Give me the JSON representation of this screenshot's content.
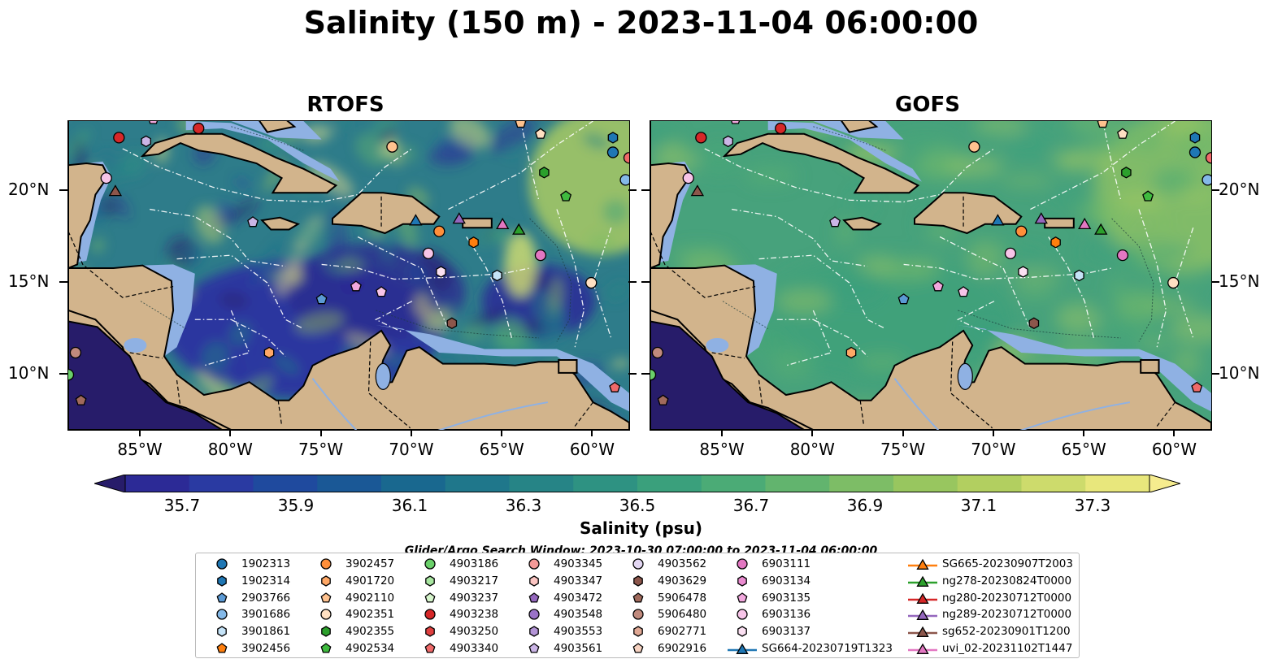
{
  "title": "Salinity (150 m) - 2023-11-04 06:00:00",
  "panels": [
    {
      "title": "RTOFS",
      "id": "rtofs"
    },
    {
      "title": "GOFS",
      "id": "gofs"
    }
  ],
  "axes": {
    "lon_labels": [
      "85°W",
      "80°W",
      "75°W",
      "70°W",
      "65°W",
      "60°W"
    ],
    "lon_values": [
      -85,
      -80,
      -75,
      -70,
      -65,
      -60
    ],
    "lat_labels": [
      "20°N",
      "15°N",
      "10°N"
    ],
    "lat_values": [
      20,
      15,
      10
    ],
    "lon_range": [
      -89,
      -58
    ],
    "lat_range": [
      7,
      23.8
    ]
  },
  "colorbar": {
    "label": "Salinity (psu)",
    "tick_labels": [
      "35.7",
      "35.9",
      "36.1",
      "36.3",
      "36.5",
      "36.7",
      "36.9",
      "37.1",
      "37.3"
    ],
    "range": [
      35.6,
      37.4
    ],
    "colors": [
      "#271c6a",
      "#2c2a96",
      "#2a3aa2",
      "#1f4a9e",
      "#1a5896",
      "#19688f",
      "#1f778b",
      "#268486",
      "#2e9282",
      "#3aa07c",
      "#4bab76",
      "#62b46e",
      "#7dbd66",
      "#98c65f",
      "#b2cf60",
      "#cddb6c",
      "#e8e77c",
      "#f6ec8e"
    ]
  },
  "search_window": "Glider/Argo Search Window: 2023-10-30 07:00:00 to 2023-11-04 06:00:00",
  "colors": {
    "land": "#d2b48c",
    "shelf": "#8fb1e3",
    "outline": "#000000"
  },
  "legend": [
    {
      "label": "1902313",
      "marker": "circle",
      "color": "#1f77b4"
    },
    {
      "label": "1902314",
      "marker": "hexagon",
      "color": "#1f77b4"
    },
    {
      "label": "2903766",
      "marker": "pentagon",
      "color": "#5b9ad5"
    },
    {
      "label": "3901686",
      "marker": "circle",
      "color": "#84b9e8"
    },
    {
      "label": "3901861",
      "marker": "hexagon",
      "color": "#c5e3f7"
    },
    {
      "label": "3902456",
      "marker": "pentagon",
      "color": "#ff7f0e"
    },
    {
      "label": "3902457",
      "marker": "circle",
      "color": "#ff8f3a"
    },
    {
      "label": "4901720",
      "marker": "hexagon",
      "color": "#ffa866"
    },
    {
      "label": "4902110",
      "marker": "pentagon",
      "color": "#ffc28f"
    },
    {
      "label": "4902351",
      "marker": "circle",
      "color": "#ffe0c2"
    },
    {
      "label": "4902355",
      "marker": "hexagon",
      "color": "#2ca02c"
    },
    {
      "label": "4902534",
      "marker": "pentagon",
      "color": "#3fbb3f"
    },
    {
      "label": "4903186",
      "marker": "circle",
      "color": "#6ad06a"
    },
    {
      "label": "4903217",
      "marker": "hexagon",
      "color": "#a8e6a0"
    },
    {
      "label": "4903237",
      "marker": "pentagon",
      "color": "#d6f5cc"
    },
    {
      "label": "4903238",
      "marker": "circle",
      "color": "#d62728"
    },
    {
      "label": "4903250",
      "marker": "hexagon",
      "color": "#e0403f"
    },
    {
      "label": "4903340",
      "marker": "pentagon",
      "color": "#f06a6a"
    },
    {
      "label": "4903345",
      "marker": "circle",
      "color": "#f59a98"
    },
    {
      "label": "4903347",
      "marker": "hexagon",
      "color": "#fbc5c2"
    },
    {
      "label": "4903472",
      "marker": "pentagon",
      "color": "#9467bd"
    },
    {
      "label": "4903548",
      "marker": "circle",
      "color": "#9a72c8"
    },
    {
      "label": "4903553",
      "marker": "hexagon",
      "color": "#b394d6"
    },
    {
      "label": "4903561",
      "marker": "pentagon",
      "color": "#cbb5e6"
    },
    {
      "label": "4903562",
      "marker": "circle",
      "color": "#e3d7f3"
    },
    {
      "label": "4903629",
      "marker": "hexagon",
      "color": "#8c564b"
    },
    {
      "label": "5906478",
      "marker": "pentagon",
      "color": "#a06a5c"
    },
    {
      "label": "5906480",
      "marker": "circle",
      "color": "#c08a7d"
    },
    {
      "label": "6902771",
      "marker": "hexagon",
      "color": "#e0a894"
    },
    {
      "label": "6902916",
      "marker": "pentagon",
      "color": "#f7d3c2"
    },
    {
      "label": "6903111",
      "marker": "circle",
      "color": "#e377c2"
    },
    {
      "label": "6903134",
      "marker": "hexagon",
      "color": "#ea8bd0"
    },
    {
      "label": "6903135",
      "marker": "pentagon",
      "color": "#f2a8de"
    },
    {
      "label": "6903136",
      "marker": "circle",
      "color": "#f7c4e8"
    },
    {
      "label": "6903137",
      "marker": "hexagon",
      "color": "#fbe0f2"
    },
    {
      "label": "SG664-20230719T1323",
      "marker": "triangle-line",
      "color": "#1f77b4"
    },
    {
      "label": "SG665-20230907T2003",
      "marker": "triangle-line",
      "color": "#ff7f0e"
    },
    {
      "label": "ng278-20230824T0000",
      "marker": "triangle-line",
      "color": "#2ca02c"
    },
    {
      "label": "ng280-20230712T0000",
      "marker": "triangle-line",
      "color": "#d62728"
    },
    {
      "label": "ng289-20230712T0000",
      "marker": "triangle-line",
      "color": "#9467bd"
    },
    {
      "label": "sg652-20230901T1200",
      "marker": "triangle-line",
      "color": "#8c564b"
    },
    {
      "label": "uvi_02-20231102T1447",
      "marker": "triangle-line",
      "color": "#e377c2"
    }
  ],
  "observations": [
    {
      "lon": -86.2,
      "lat": 22.9,
      "marker": "circle",
      "color": "#d62728"
    },
    {
      "lon": -81.8,
      "lat": 23.4,
      "marker": "circle",
      "color": "#d62728"
    },
    {
      "lon": -84.7,
      "lat": 22.7,
      "marker": "hexagon",
      "color": "#cbb5e6"
    },
    {
      "lon": -84.3,
      "lat": 23.9,
      "marker": "pentagon",
      "color": "#f2a8de"
    },
    {
      "lon": -86.9,
      "lat": 20.7,
      "marker": "circle",
      "color": "#f7c4e8"
    },
    {
      "lon": -86.4,
      "lat": 20.0,
      "marker": "triangle",
      "color": "#8c564b"
    },
    {
      "lon": -71.1,
      "lat": 22.4,
      "marker": "circle",
      "color": "#ffc28f"
    },
    {
      "lon": -64.0,
      "lat": 23.7,
      "marker": "pentagon",
      "color": "#ffc28f"
    },
    {
      "lon": -62.9,
      "lat": 23.1,
      "marker": "pentagon",
      "color": "#ffe0c2"
    },
    {
      "lon": -58.9,
      "lat": 22.9,
      "marker": "hexagon",
      "color": "#1f77b4"
    },
    {
      "lon": -58.9,
      "lat": 22.1,
      "marker": "circle",
      "color": "#1f77b4"
    },
    {
      "lon": -58.0,
      "lat": 21.8,
      "marker": "circle",
      "color": "#f06a6a"
    },
    {
      "lon": -58.2,
      "lat": 20.6,
      "marker": "circle",
      "color": "#84b9e8"
    },
    {
      "lon": -62.7,
      "lat": 21.0,
      "marker": "hexagon",
      "color": "#2ca02c"
    },
    {
      "lon": -61.5,
      "lat": 19.7,
      "marker": "pentagon",
      "color": "#3fbb3f"
    },
    {
      "lon": -78.8,
      "lat": 18.3,
      "marker": "pentagon",
      "color": "#cbb5e6"
    },
    {
      "lon": -69.8,
      "lat": 18.4,
      "marker": "triangle",
      "color": "#1f77b4"
    },
    {
      "lon": -67.4,
      "lat": 18.5,
      "marker": "triangle",
      "color": "#9467bd"
    },
    {
      "lon": -68.5,
      "lat": 17.8,
      "marker": "circle",
      "color": "#ff8f3a"
    },
    {
      "lon": -66.6,
      "lat": 17.2,
      "marker": "hexagon",
      "color": "#ff7f0e"
    },
    {
      "lon": -65.0,
      "lat": 18.2,
      "marker": "triangle",
      "color": "#e377c2"
    },
    {
      "lon": -64.1,
      "lat": 17.9,
      "marker": "triangle",
      "color": "#2ca02c"
    },
    {
      "lon": -69.1,
      "lat": 16.6,
      "marker": "circle",
      "color": "#f7c4e8"
    },
    {
      "lon": -68.4,
      "lat": 15.6,
      "marker": "hexagon",
      "color": "#fbe0f2"
    },
    {
      "lon": -65.3,
      "lat": 15.4,
      "marker": "hexagon",
      "color": "#c5e3f7"
    },
    {
      "lon": -62.9,
      "lat": 16.5,
      "marker": "circle",
      "color": "#e377c2"
    },
    {
      "lon": -60.1,
      "lat": 15.0,
      "marker": "circle",
      "color": "#ffe0c2"
    },
    {
      "lon": -73.1,
      "lat": 14.8,
      "marker": "pentagon",
      "color": "#f2a8de"
    },
    {
      "lon": -71.7,
      "lat": 14.5,
      "marker": "pentagon",
      "color": "#f7c4e8"
    },
    {
      "lon": -75.0,
      "lat": 14.1,
      "marker": "pentagon",
      "color": "#5b9ad5"
    },
    {
      "lon": -67.8,
      "lat": 12.8,
      "marker": "hexagon",
      "color": "#8c564b"
    },
    {
      "lon": -77.9,
      "lat": 11.2,
      "marker": "hexagon",
      "color": "#ffa866"
    },
    {
      "lon": -88.6,
      "lat": 11.2,
      "marker": "circle",
      "color": "#c08a7d"
    },
    {
      "lon": -88.3,
      "lat": 8.6,
      "marker": "pentagon",
      "color": "#a06a5c"
    },
    {
      "lon": -89.0,
      "lat": 10.0,
      "marker": "circle",
      "color": "#6ad06a"
    },
    {
      "lon": -58.8,
      "lat": 9.3,
      "marker": "pentagon",
      "color": "#f06a6a"
    }
  ]
}
